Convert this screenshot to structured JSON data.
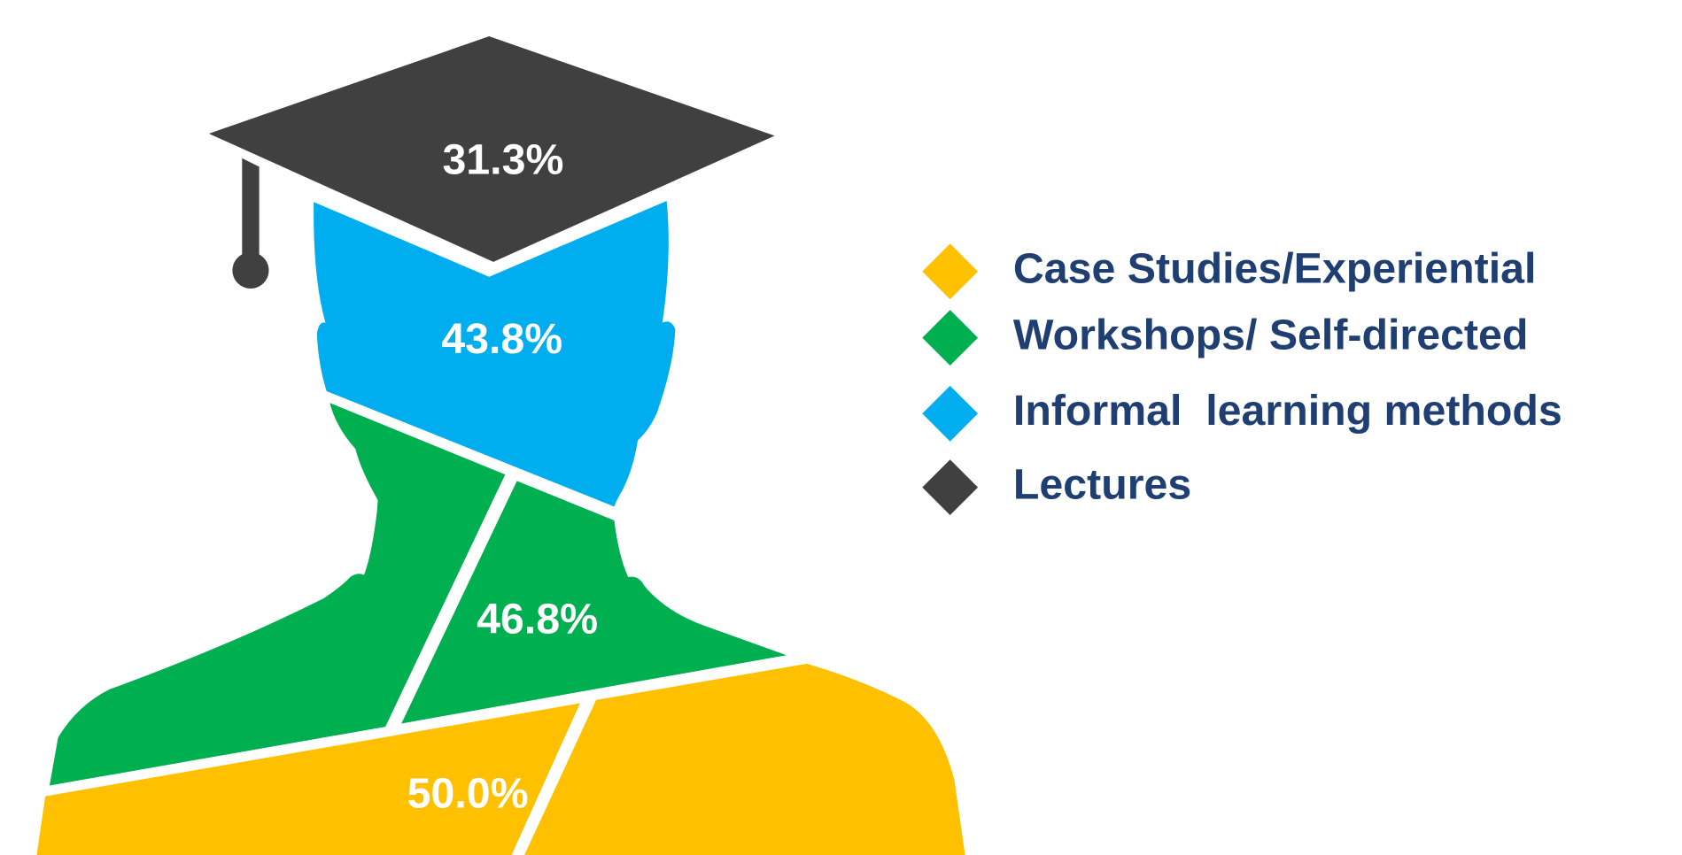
{
  "chart_data": {
    "type": "pictorial",
    "categories": [
      "Case Studies/Experiential",
      "Workshops/ Self-directed",
      "Informal  learning methods",
      "Lectures"
    ],
    "values": [
      50.0,
      46.8,
      43.8,
      31.3
    ],
    "value_labels": [
      "50.0%",
      "46.8%",
      "43.8%",
      "31.3%"
    ],
    "colors": [
      "#FFC000",
      "#00AF50",
      "#00AEEF",
      "#404040"
    ]
  }
}
